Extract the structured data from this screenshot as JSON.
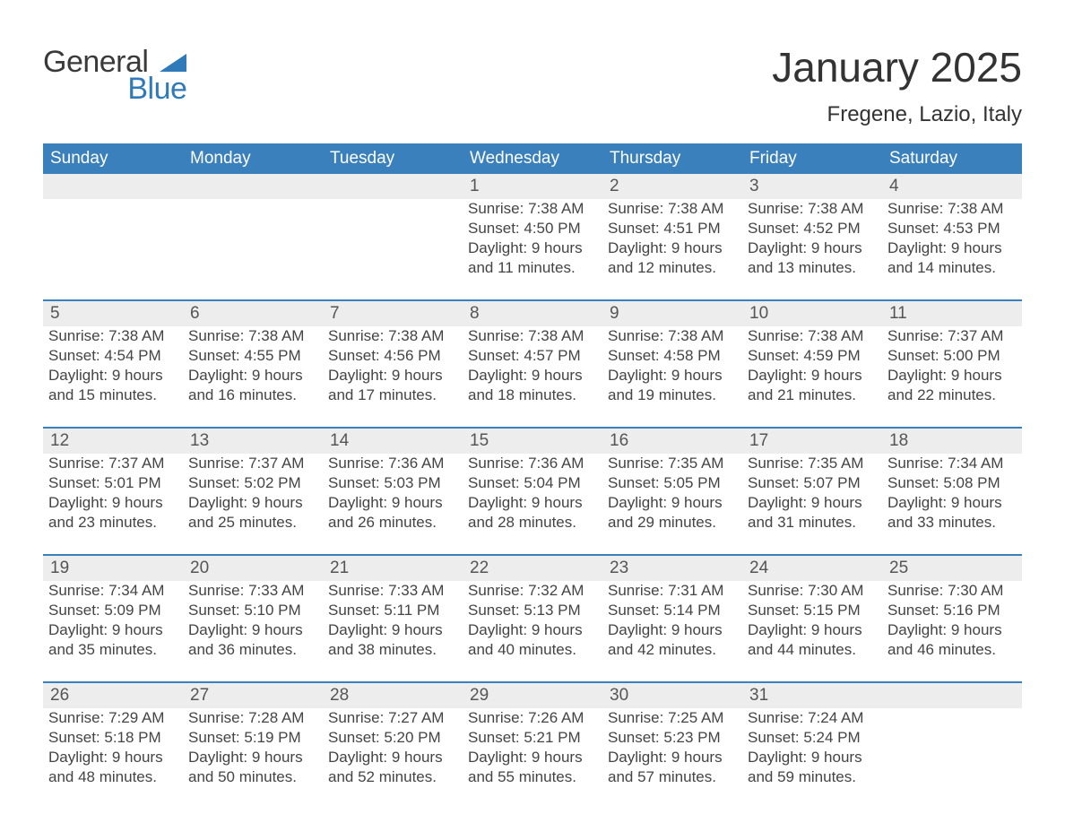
{
  "logo": {
    "line1": "General",
    "line2": "Blue",
    "accent_color": "#2f7ab8"
  },
  "title": "January 2025",
  "location": "Fregene, Lazio, Italy",
  "colors": {
    "header_bg": "#3a80bd",
    "header_text": "#ffffff",
    "daynum_bg": "#ededed",
    "week_border": "#3a80bd",
    "body_text": "#444444",
    "page_bg": "#ffffff"
  },
  "fonts": {
    "title_size_pt": 34,
    "location_size_pt": 18,
    "header_size_pt": 14,
    "body_size_pt": 13
  },
  "day_headers": [
    "Sunday",
    "Monday",
    "Tuesday",
    "Wednesday",
    "Thursday",
    "Friday",
    "Saturday"
  ],
  "weeks": [
    [
      null,
      null,
      null,
      {
        "n": "1",
        "sunrise": "7:38 AM",
        "sunset": "4:50 PM",
        "d1": "Daylight: 9 hours",
        "d2": "and 11 minutes."
      },
      {
        "n": "2",
        "sunrise": "7:38 AM",
        "sunset": "4:51 PM",
        "d1": "Daylight: 9 hours",
        "d2": "and 12 minutes."
      },
      {
        "n": "3",
        "sunrise": "7:38 AM",
        "sunset": "4:52 PM",
        "d1": "Daylight: 9 hours",
        "d2": "and 13 minutes."
      },
      {
        "n": "4",
        "sunrise": "7:38 AM",
        "sunset": "4:53 PM",
        "d1": "Daylight: 9 hours",
        "d2": "and 14 minutes."
      }
    ],
    [
      {
        "n": "5",
        "sunrise": "7:38 AM",
        "sunset": "4:54 PM",
        "d1": "Daylight: 9 hours",
        "d2": "and 15 minutes."
      },
      {
        "n": "6",
        "sunrise": "7:38 AM",
        "sunset": "4:55 PM",
        "d1": "Daylight: 9 hours",
        "d2": "and 16 minutes."
      },
      {
        "n": "7",
        "sunrise": "7:38 AM",
        "sunset": "4:56 PM",
        "d1": "Daylight: 9 hours",
        "d2": "and 17 minutes."
      },
      {
        "n": "8",
        "sunrise": "7:38 AM",
        "sunset": "4:57 PM",
        "d1": "Daylight: 9 hours",
        "d2": "and 18 minutes."
      },
      {
        "n": "9",
        "sunrise": "7:38 AM",
        "sunset": "4:58 PM",
        "d1": "Daylight: 9 hours",
        "d2": "and 19 minutes."
      },
      {
        "n": "10",
        "sunrise": "7:38 AM",
        "sunset": "4:59 PM",
        "d1": "Daylight: 9 hours",
        "d2": "and 21 minutes."
      },
      {
        "n": "11",
        "sunrise": "7:37 AM",
        "sunset": "5:00 PM",
        "d1": "Daylight: 9 hours",
        "d2": "and 22 minutes."
      }
    ],
    [
      {
        "n": "12",
        "sunrise": "7:37 AM",
        "sunset": "5:01 PM",
        "d1": "Daylight: 9 hours",
        "d2": "and 23 minutes."
      },
      {
        "n": "13",
        "sunrise": "7:37 AM",
        "sunset": "5:02 PM",
        "d1": "Daylight: 9 hours",
        "d2": "and 25 minutes."
      },
      {
        "n": "14",
        "sunrise": "7:36 AM",
        "sunset": "5:03 PM",
        "d1": "Daylight: 9 hours",
        "d2": "and 26 minutes."
      },
      {
        "n": "15",
        "sunrise": "7:36 AM",
        "sunset": "5:04 PM",
        "d1": "Daylight: 9 hours",
        "d2": "and 28 minutes."
      },
      {
        "n": "16",
        "sunrise": "7:35 AM",
        "sunset": "5:05 PM",
        "d1": "Daylight: 9 hours",
        "d2": "and 29 minutes."
      },
      {
        "n": "17",
        "sunrise": "7:35 AM",
        "sunset": "5:07 PM",
        "d1": "Daylight: 9 hours",
        "d2": "and 31 minutes."
      },
      {
        "n": "18",
        "sunrise": "7:34 AM",
        "sunset": "5:08 PM",
        "d1": "Daylight: 9 hours",
        "d2": "and 33 minutes."
      }
    ],
    [
      {
        "n": "19",
        "sunrise": "7:34 AM",
        "sunset": "5:09 PM",
        "d1": "Daylight: 9 hours",
        "d2": "and 35 minutes."
      },
      {
        "n": "20",
        "sunrise": "7:33 AM",
        "sunset": "5:10 PM",
        "d1": "Daylight: 9 hours",
        "d2": "and 36 minutes."
      },
      {
        "n": "21",
        "sunrise": "7:33 AM",
        "sunset": "5:11 PM",
        "d1": "Daylight: 9 hours",
        "d2": "and 38 minutes."
      },
      {
        "n": "22",
        "sunrise": "7:32 AM",
        "sunset": "5:13 PM",
        "d1": "Daylight: 9 hours",
        "d2": "and 40 minutes."
      },
      {
        "n": "23",
        "sunrise": "7:31 AM",
        "sunset": "5:14 PM",
        "d1": "Daylight: 9 hours",
        "d2": "and 42 minutes."
      },
      {
        "n": "24",
        "sunrise": "7:30 AM",
        "sunset": "5:15 PM",
        "d1": "Daylight: 9 hours",
        "d2": "and 44 minutes."
      },
      {
        "n": "25",
        "sunrise": "7:30 AM",
        "sunset": "5:16 PM",
        "d1": "Daylight: 9 hours",
        "d2": "and 46 minutes."
      }
    ],
    [
      {
        "n": "26",
        "sunrise": "7:29 AM",
        "sunset": "5:18 PM",
        "d1": "Daylight: 9 hours",
        "d2": "and 48 minutes."
      },
      {
        "n": "27",
        "sunrise": "7:28 AM",
        "sunset": "5:19 PM",
        "d1": "Daylight: 9 hours",
        "d2": "and 50 minutes."
      },
      {
        "n": "28",
        "sunrise": "7:27 AM",
        "sunset": "5:20 PM",
        "d1": "Daylight: 9 hours",
        "d2": "and 52 minutes."
      },
      {
        "n": "29",
        "sunrise": "7:26 AM",
        "sunset": "5:21 PM",
        "d1": "Daylight: 9 hours",
        "d2": "and 55 minutes."
      },
      {
        "n": "30",
        "sunrise": "7:25 AM",
        "sunset": "5:23 PM",
        "d1": "Daylight: 9 hours",
        "d2": "and 57 minutes."
      },
      {
        "n": "31",
        "sunrise": "7:24 AM",
        "sunset": "5:24 PM",
        "d1": "Daylight: 9 hours",
        "d2": "and 59 minutes."
      },
      null
    ]
  ],
  "labels": {
    "sunrise_prefix": "Sunrise: ",
    "sunset_prefix": "Sunset: "
  }
}
